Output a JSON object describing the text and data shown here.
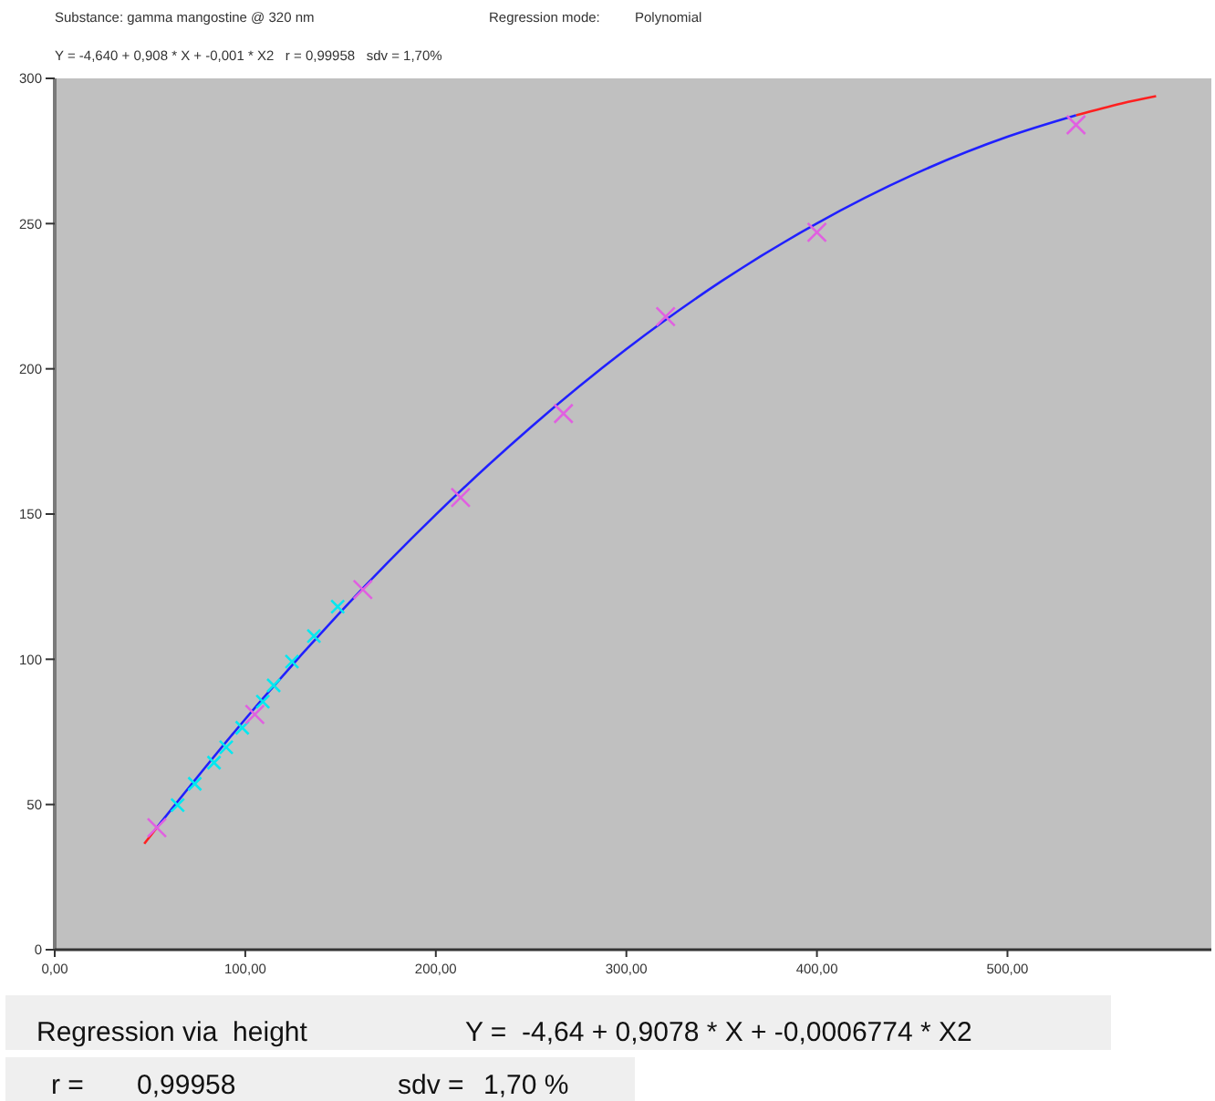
{
  "chart_data": {
    "type": "scatter",
    "title": "Substance: gamma mangostine @ 320 nm",
    "annotations": [
      "Regression mode:",
      "Polynomial",
      "Y = -4,640 + 0,908 * X + -0,001 * X2   r = 0,99958   sdv = 1,70%",
      "Regression via  height",
      "Y =  -4,64 + 0,9078 * X + -0,0006774 * X2",
      "r =",
      "0,99958",
      "sdv =",
      "1,70 %"
    ],
    "xlim": [
      0,
      607
    ],
    "ylim": [
      0,
      300
    ],
    "xticks": [
      {
        "value": 0,
        "label": "0,00"
      },
      {
        "value": 100,
        "label": "100,00"
      },
      {
        "value": 200,
        "label": "200,00"
      },
      {
        "value": 300,
        "label": "300,00"
      },
      {
        "value": 400,
        "label": "400,00"
      },
      {
        "value": 500,
        "label": "500,00"
      }
    ],
    "yticks": [
      0,
      50,
      100,
      150,
      200,
      250,
      300
    ],
    "grid": false,
    "series": [
      {
        "type": "line",
        "color": "#ff2020",
        "x": [
          47,
          54
        ],
        "values": [
          36.5,
          42.4
        ]
      },
      {
        "type": "line",
        "color": "#ff2020",
        "x": [
          536,
          560,
          578
        ],
        "values": [
          287.3,
          291.4,
          293.9
        ]
      },
      {
        "type": "line",
        "color": "#2020ff",
        "x": [
          54,
          100,
          150,
          200,
          250,
          300,
          350,
          400,
          450,
          500,
          536
        ],
        "values": [
          42.4,
          79.4,
          116.3,
          149.8,
          180.0,
          206.8,
          230.2,
          250.1,
          266.7,
          279.9,
          287.3
        ]
      },
      {
        "color": "#00e8f0",
        "marker": "cross",
        "x": [
          64.5,
          73.5,
          83.6,
          90,
          98.4,
          109.2,
          114.9,
          124.5,
          136,
          148.5
        ],
        "values": [
          49.8,
          57.1,
          64.4,
          69.7,
          76.4,
          85.4,
          91,
          99.2,
          108,
          118.1
        ]
      },
      {
        "color": "#e060e0",
        "marker": "cross",
        "x": [
          53.6,
          105,
          161.7,
          213,
          267,
          320.6,
          400,
          536
        ],
        "values": [
          42,
          81,
          124,
          155.7,
          184.6,
          218,
          247,
          284
        ]
      }
    ]
  }
}
